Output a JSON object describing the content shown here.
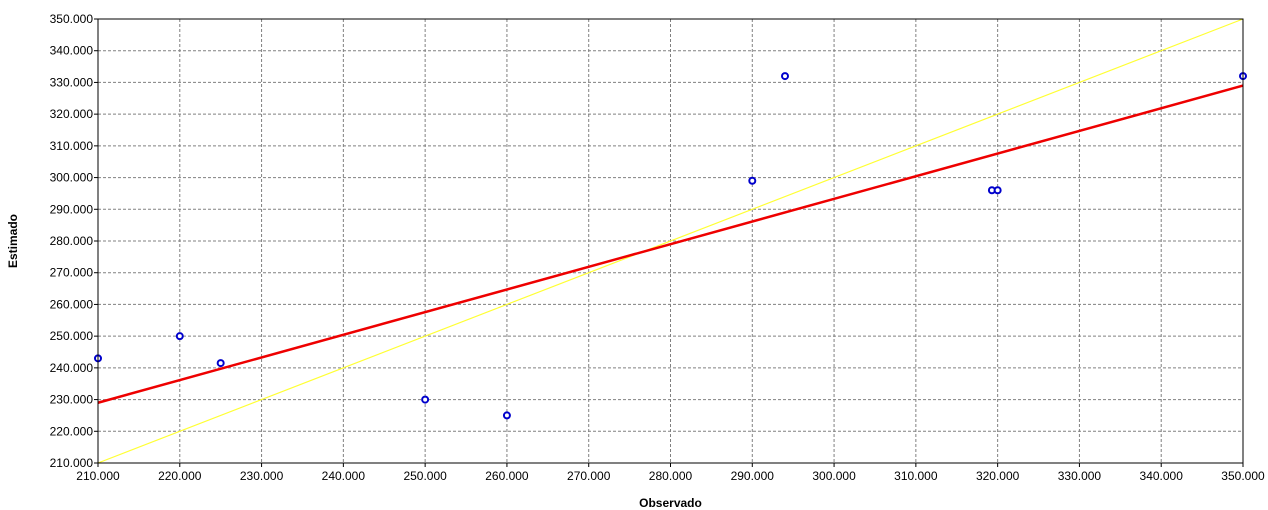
{
  "chart_data": {
    "type": "scatter",
    "xlabel": "Observado",
    "ylabel": "Estimado",
    "xlim": [
      210000,
      350000
    ],
    "ylim": [
      210000,
      350000
    ],
    "x_ticks": [
      "210.000",
      "220.000",
      "230.000",
      "240.000",
      "250.000",
      "260.000",
      "270.000",
      "280.000",
      "290.000",
      "300.000",
      "310.000",
      "320.000",
      "330.000",
      "340.000",
      "350.000"
    ],
    "y_ticks": [
      "210.000",
      "220.000",
      "230.000",
      "240.000",
      "250.000",
      "260.000",
      "270.000",
      "280.000",
      "290.000",
      "300.000",
      "310.000",
      "320.000",
      "330.000",
      "340.000",
      "350.000"
    ],
    "grid": true,
    "points": [
      {
        "x": 210000,
        "y": 243000
      },
      {
        "x": 220000,
        "y": 250000
      },
      {
        "x": 225000,
        "y": 241500
      },
      {
        "x": 250000,
        "y": 230000
      },
      {
        "x": 260000,
        "y": 225000
      },
      {
        "x": 290000,
        "y": 299000
      },
      {
        "x": 294000,
        "y": 332000
      },
      {
        "x": 319300,
        "y": 296000
      },
      {
        "x": 320000,
        "y": 296000
      },
      {
        "x": 350000,
        "y": 332000
      }
    ],
    "fit_line": {
      "x": [
        210000,
        350000
      ],
      "y": [
        229000,
        329000
      ]
    },
    "identity_line": {
      "x": [
        210000,
        350000
      ],
      "y": [
        210000,
        350000
      ]
    },
    "colors": {
      "points": "#0000cc",
      "fit_line": "#ee0000",
      "identity_line": "#ffff33",
      "grid": "#808080"
    }
  }
}
